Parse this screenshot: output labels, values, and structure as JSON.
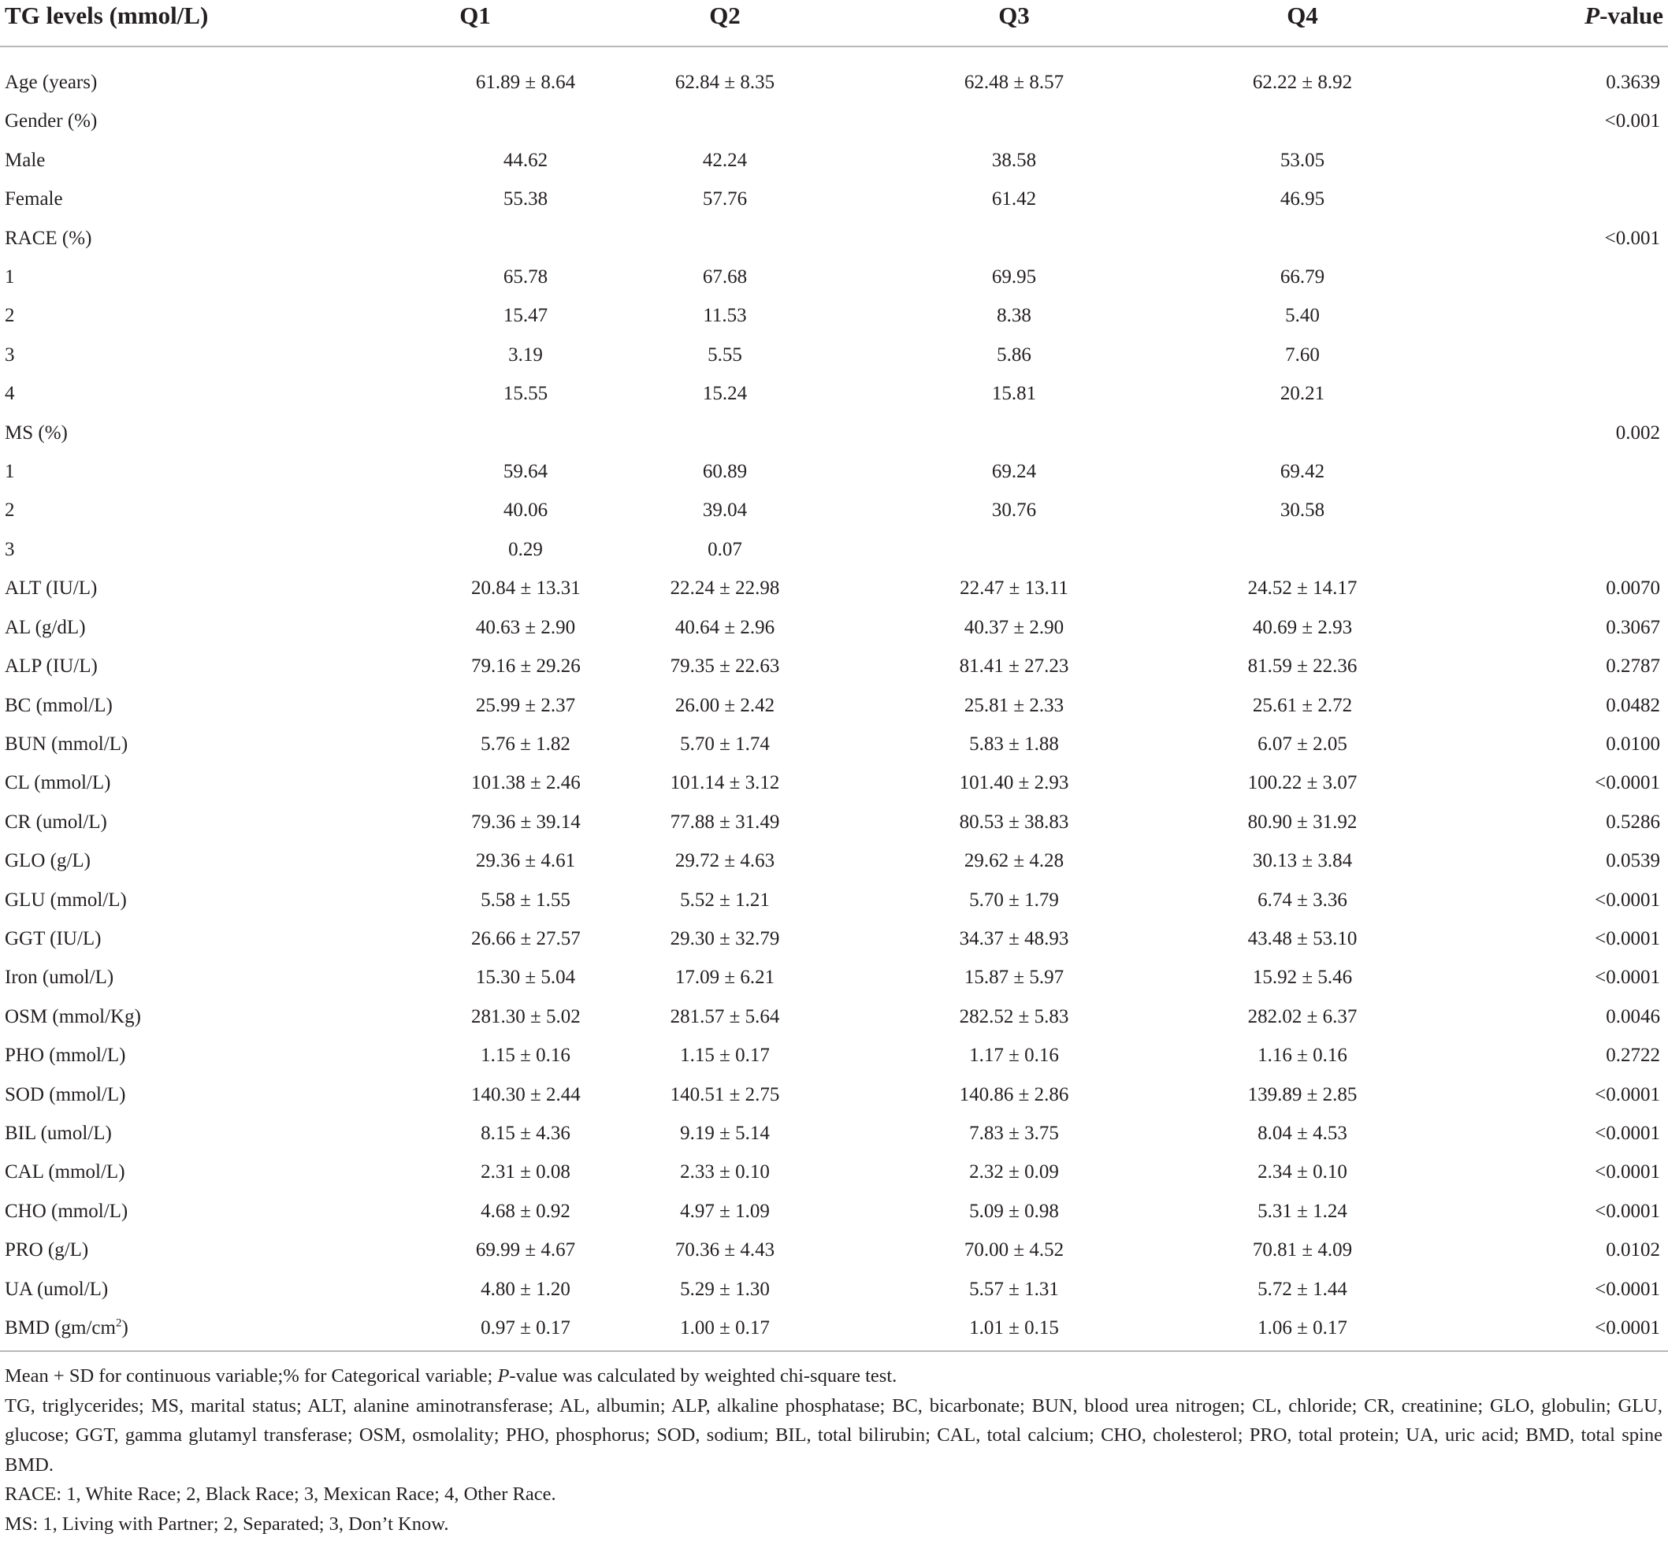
{
  "header": {
    "label": "TG levels (mmol/L)",
    "q1": "Q1",
    "q2": "Q2",
    "q3": "Q3",
    "q4": "Q4",
    "p_italic": "P",
    "p_suffix": "-value"
  },
  "rows": [
    {
      "label": "Age (years)",
      "q1": "61.89 ± 8.64",
      "q2": "62.84 ± 8.35",
      "q3": "62.48 ± 8.57",
      "q4": "62.22 ± 8.92",
      "p": "0.3639"
    },
    {
      "label": "Gender (%)",
      "q1": "",
      "q2": "",
      "q3": "",
      "q4": "",
      "p": "<0.001"
    },
    {
      "label": "Male",
      "q1": "44.62",
      "q2": "42.24",
      "q3": "38.58",
      "q4": "53.05",
      "p": ""
    },
    {
      "label": "Female",
      "q1": "55.38",
      "q2": "57.76",
      "q3": "61.42",
      "q4": "46.95",
      "p": ""
    },
    {
      "label": "RACE (%)",
      "q1": "",
      "q2": "",
      "q3": "",
      "q4": "",
      "p": "<0.001"
    },
    {
      "label": "1",
      "q1": "65.78",
      "q2": "67.68",
      "q3": "69.95",
      "q4": "66.79",
      "p": ""
    },
    {
      "label": "2",
      "q1": "15.47",
      "q2": "11.53",
      "q3": "8.38",
      "q4": "5.40",
      "p": ""
    },
    {
      "label": "3",
      "q1": "3.19",
      "q2": "5.55",
      "q3": "5.86",
      "q4": "7.60",
      "p": ""
    },
    {
      "label": "4",
      "q1": "15.55",
      "q2": "15.24",
      "q3": "15.81",
      "q4": "20.21",
      "p": ""
    },
    {
      "label": "MS (%)",
      "q1": "",
      "q2": "",
      "q3": "",
      "q4": "",
      "p": "0.002"
    },
    {
      "label": "1",
      "q1": "59.64",
      "q2": "60.89",
      "q3": "69.24",
      "q4": "69.42",
      "p": ""
    },
    {
      "label": "2",
      "q1": "40.06",
      "q2": "39.04",
      "q3": "30.76",
      "q4": "30.58",
      "p": ""
    },
    {
      "label": "3",
      "q1": "0.29",
      "q2": "0.07",
      "q3": "",
      "q4": "",
      "p": ""
    },
    {
      "label": "ALT (IU/L)",
      "q1": "20.84 ± 13.31",
      "q2": "22.24 ± 22.98",
      "q3": "22.47 ± 13.11",
      "q4": "24.52 ± 14.17",
      "p": "0.0070"
    },
    {
      "label": "AL (g/dL)",
      "q1": "40.63 ± 2.90",
      "q2": "40.64 ± 2.96",
      "q3": "40.37 ± 2.90",
      "q4": "40.69 ± 2.93",
      "p": "0.3067"
    },
    {
      "label": "ALP (IU/L)",
      "q1": "79.16 ± 29.26",
      "q2": "79.35 ± 22.63",
      "q3": "81.41 ± 27.23",
      "q4": "81.59 ± 22.36",
      "p": "0.2787"
    },
    {
      "label": "BC (mmol/L)",
      "q1": "25.99 ± 2.37",
      "q2": "26.00 ± 2.42",
      "q3": "25.81 ± 2.33",
      "q4": "25.61 ± 2.72",
      "p": "0.0482"
    },
    {
      "label": "BUN (mmol/L)",
      "q1": "5.76 ± 1.82",
      "q2": "5.70 ± 1.74",
      "q3": "5.83 ± 1.88",
      "q4": "6.07 ± 2.05",
      "p": "0.0100"
    },
    {
      "label": "CL (mmol/L)",
      "q1": "101.38 ± 2.46",
      "q2": "101.14 ± 3.12",
      "q3": "101.40 ± 2.93",
      "q4": "100.22 ± 3.07",
      "p": "<0.0001"
    },
    {
      "label": "CR (umol/L)",
      "q1": "79.36 ± 39.14",
      "q2": "77.88 ± 31.49",
      "q3": "80.53 ± 38.83",
      "q4": "80.90 ± 31.92",
      "p": "0.5286"
    },
    {
      "label": "GLO (g/L)",
      "q1": "29.36 ± 4.61",
      "q2": "29.72 ± 4.63",
      "q3": "29.62 ± 4.28",
      "q4": "30.13 ± 3.84",
      "p": "0.0539"
    },
    {
      "label": "GLU (mmol/L)",
      "q1": "5.58 ± 1.55",
      "q2": "5.52 ± 1.21",
      "q3": "5.70 ± 1.79",
      "q4": "6.74 ± 3.36",
      "p": "<0.0001"
    },
    {
      "label": "GGT (IU/L)",
      "q1": "26.66 ± 27.57",
      "q2": "29.30 ± 32.79",
      "q3": "34.37 ± 48.93",
      "q4": "43.48 ± 53.10",
      "p": "<0.0001"
    },
    {
      "label": "Iron (umol/L)",
      "q1": "15.30 ± 5.04",
      "q2": "17.09 ± 6.21",
      "q3": "15.87 ± 5.97",
      "q4": "15.92 ± 5.46",
      "p": "<0.0001"
    },
    {
      "label": "OSM (mmol/Kg)",
      "q1": "281.30 ± 5.02",
      "q2": "281.57 ± 5.64",
      "q3": "282.52 ± 5.83",
      "q4": "282.02 ± 6.37",
      "p": "0.0046"
    },
    {
      "label": "PHO (mmol/L)",
      "q1": "1.15 ± 0.16",
      "q2": "1.15 ± 0.17",
      "q3": "1.17 ± 0.16",
      "q4": "1.16 ± 0.16",
      "p": "0.2722"
    },
    {
      "label": "SOD (mmol/L)",
      "q1": "140.30 ± 2.44",
      "q2": "140.51 ± 2.75",
      "q3": "140.86 ± 2.86",
      "q4": "139.89 ± 2.85",
      "p": "<0.0001"
    },
    {
      "label": "BIL (umol/L)",
      "q1": "8.15 ± 4.36",
      "q2": "9.19 ± 5.14",
      "q3": "7.83 ± 3.75",
      "q4": "8.04 ± 4.53",
      "p": "<0.0001"
    },
    {
      "label": "CAL (mmol/L)",
      "q1": "2.31 ± 0.08",
      "q2": "2.33 ± 0.10",
      "q3": "2.32 ± 0.09",
      "q4": "2.34 ± 0.10",
      "p": "<0.0001"
    },
    {
      "label": "CHO (mmol/L)",
      "q1": "4.68 ± 0.92",
      "q2": "4.97 ± 1.09",
      "q3": "5.09 ± 0.98",
      "q4": "5.31 ± 1.24",
      "p": "<0.0001"
    },
    {
      "label": "PRO (g/L)",
      "q1": "69.99 ± 4.67",
      "q2": "70.36 ± 4.43",
      "q3": "70.00 ± 4.52",
      "q4": "70.81 ± 4.09",
      "p": "0.0102"
    },
    {
      "label": "UA (umol/L)",
      "q1": "4.80 ± 1.20",
      "q2": "5.29 ± 1.30",
      "q3": "5.57 ± 1.31",
      "q4": "5.72 ± 1.44",
      "p": "<0.0001"
    }
  ],
  "bmd_row": {
    "label_pre": "BMD (gm/cm",
    "label_sup": "2",
    "label_post": ")",
    "q1": "0.97 ± 0.17",
    "q2": "1.00 ± 0.17",
    "q3": "1.01 ± 0.15",
    "q4": "1.06 ± 0.17",
    "p": "<0.0001"
  },
  "notes": {
    "line1_pre": "Mean + SD for continuous variable;% for Categorical variable; ",
    "line1_italic": "P",
    "line1_post": "-value was calculated by weighted chi-square test.",
    "abbreviations": "TG, triglycerides; MS, marital status; ALT, alanine aminotransferase; AL, albumin; ALP, alkaline phosphatase; BC, bicarbonate; BUN, blood urea nitrogen; CL, chloride; CR, creatinine; GLO, globulin; GLU, glucose; GGT, gamma glutamyl transferase; OSM, osmolality; PHO, phosphorus; SOD, sodium; BIL, total bilirubin; CAL, total calcium; CHO, cholesterol; PRO, total protein; UA, uric acid; BMD, total spine BMD.",
    "race": "RACE: 1, White Race; 2, Black Race; 3, Mexican Race; 4, Other Race.",
    "ms": "MS: 1, Living with Partner; 2, Separated; 3, Don’t Know."
  }
}
